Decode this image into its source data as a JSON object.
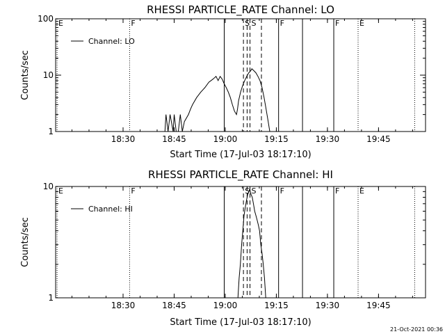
{
  "footer": {
    "timestamp": "21-Oct-2021 00:36"
  },
  "chart_data": [
    {
      "type": "line",
      "title": "RHESSI PARTICLE_RATE Channel: LO",
      "xlabel": "Start Time (17-Jul-03 18:17:10)",
      "ylabel": "Counts/sec",
      "yscale": "log",
      "xlim": [
        18.17,
        19.98
      ],
      "ylim": [
        1,
        100
      ],
      "xticks": [
        {
          "x": 18.5,
          "label": "18:30"
        },
        {
          "x": 18.75,
          "label": "18:45"
        },
        {
          "x": 19.0,
          "label": "19:00"
        },
        {
          "x": 19.25,
          "label": "19:15"
        },
        {
          "x": 19.5,
          "label": "19:30"
        },
        {
          "x": 19.75,
          "label": "19:45"
        }
      ],
      "yticks": [
        {
          "y": 1,
          "label": "1"
        },
        {
          "y": 10,
          "label": "10"
        },
        {
          "y": 100,
          "label": "100"
        }
      ],
      "legend": "top-left",
      "series": [
        {
          "name": "Channel: LO",
          "points": [
            [
              18.705,
              1
            ],
            [
              18.71,
              2
            ],
            [
              18.72,
              1
            ],
            [
              18.73,
              2
            ],
            [
              18.745,
              1
            ],
            [
              18.75,
              2
            ],
            [
              18.76,
              1
            ],
            [
              18.77,
              1
            ],
            [
              18.78,
              2
            ],
            [
              18.79,
              1
            ],
            [
              18.8,
              1.5
            ],
            [
              18.82,
              2
            ],
            [
              18.83,
              2.5
            ],
            [
              18.84,
              3
            ],
            [
              18.86,
              4
            ],
            [
              18.88,
              5
            ],
            [
              18.9,
              6
            ],
            [
              18.92,
              7.5
            ],
            [
              18.94,
              8.5
            ],
            [
              18.955,
              9.5
            ],
            [
              18.965,
              8
            ],
            [
              18.975,
              9.5
            ],
            [
              18.985,
              8.5
            ],
            [
              18.995,
              7
            ],
            [
              19.005,
              6
            ],
            [
              19.015,
              5
            ],
            [
              19.025,
              4
            ],
            [
              19.035,
              3
            ],
            [
              19.045,
              2.3
            ],
            [
              19.055,
              2
            ],
            [
              19.06,
              2.5
            ],
            [
              19.065,
              3.5
            ],
            [
              19.075,
              5
            ],
            [
              19.085,
              6.5
            ],
            [
              19.095,
              8
            ],
            [
              19.105,
              9.5
            ],
            [
              19.115,
              11
            ],
            [
              19.125,
              12
            ],
            [
              19.13,
              13
            ],
            [
              19.14,
              12
            ],
            [
              19.15,
              11
            ],
            [
              19.16,
              9.5
            ],
            [
              19.17,
              8
            ],
            [
              19.18,
              6
            ],
            [
              19.19,
              4
            ],
            [
              19.2,
              2.5
            ],
            [
              19.21,
              1.5
            ],
            [
              19.218,
              1
            ]
          ]
        }
      ],
      "markers": [
        {
          "x": 18.177,
          "label": "E",
          "style": "dotted"
        },
        {
          "x": 18.532,
          "label": "F",
          "style": "dotted"
        },
        {
          "x": 18.995,
          "label": "",
          "style": "solid"
        },
        {
          "x": 19.089,
          "label": "S",
          "style": "dashed"
        },
        {
          "x": 19.107,
          "label": "",
          "style": "dashed"
        },
        {
          "x": 19.121,
          "label": "S",
          "style": "dashed"
        },
        {
          "x": 19.177,
          "label": "",
          "style": "dashed"
        },
        {
          "x": 19.261,
          "label": "F",
          "style": "solid"
        },
        {
          "x": 19.378,
          "label": "",
          "style": "solid"
        },
        {
          "x": 19.531,
          "label": "F",
          "style": "solid"
        },
        {
          "x": 19.65,
          "label": "E",
          "style": "dotted"
        },
        {
          "x": 19.927,
          "label": "",
          "style": "dotted"
        }
      ]
    },
    {
      "type": "line",
      "title": "RHESSI PARTICLE_RATE Channel: HI",
      "xlabel": "Start Time (17-Jul-03 18:17:10)",
      "ylabel": "Counts/sec",
      "yscale": "log",
      "xlim": [
        18.17,
        19.98
      ],
      "ylim": [
        1,
        10
      ],
      "xticks": [
        {
          "x": 18.5,
          "label": "18:30"
        },
        {
          "x": 18.75,
          "label": "18:45"
        },
        {
          "x": 19.0,
          "label": "19:00"
        },
        {
          "x": 19.25,
          "label": "19:15"
        },
        {
          "x": 19.5,
          "label": "19:30"
        },
        {
          "x": 19.75,
          "label": "19:45"
        }
      ],
      "yticks": [
        {
          "y": 1,
          "label": "1"
        },
        {
          "y": 10,
          "label": "10"
        }
      ],
      "legend": "top-left",
      "series": [
        {
          "name": "Channel: HI",
          "points": [
            [
              19.062,
              1
            ],
            [
              19.068,
              1.5
            ],
            [
              19.074,
              2
            ],
            [
              19.08,
              3
            ],
            [
              19.086,
              4
            ],
            [
              19.092,
              5.5
            ],
            [
              19.098,
              6.5
            ],
            [
              19.104,
              7.5
            ],
            [
              19.11,
              8.5
            ],
            [
              19.116,
              9
            ],
            [
              19.12,
              9.5
            ],
            [
              19.126,
              8.5
            ],
            [
              19.132,
              8
            ],
            [
              19.138,
              7
            ],
            [
              19.144,
              6
            ],
            [
              19.15,
              5.5
            ],
            [
              19.156,
              5
            ],
            [
              19.162,
              4.5
            ],
            [
              19.168,
              4
            ],
            [
              19.174,
              3
            ],
            [
              19.18,
              2.5
            ],
            [
              19.186,
              2
            ],
            [
              19.192,
              1.5
            ],
            [
              19.198,
              1
            ]
          ]
        }
      ],
      "markers": [
        {
          "x": 18.177,
          "label": "E",
          "style": "dotted"
        },
        {
          "x": 18.532,
          "label": "F",
          "style": "dotted"
        },
        {
          "x": 18.995,
          "label": "",
          "style": "solid"
        },
        {
          "x": 19.089,
          "label": "S",
          "style": "dashed"
        },
        {
          "x": 19.107,
          "label": "",
          "style": "dashed"
        },
        {
          "x": 19.121,
          "label": "S",
          "style": "dashed"
        },
        {
          "x": 19.177,
          "label": "",
          "style": "dashed"
        },
        {
          "x": 19.261,
          "label": "F",
          "style": "solid"
        },
        {
          "x": 19.378,
          "label": "",
          "style": "solid"
        },
        {
          "x": 19.531,
          "label": "F",
          "style": "solid"
        },
        {
          "x": 19.65,
          "label": "E",
          "style": "dotted"
        },
        {
          "x": 19.927,
          "label": "",
          "style": "dotted"
        }
      ]
    }
  ]
}
